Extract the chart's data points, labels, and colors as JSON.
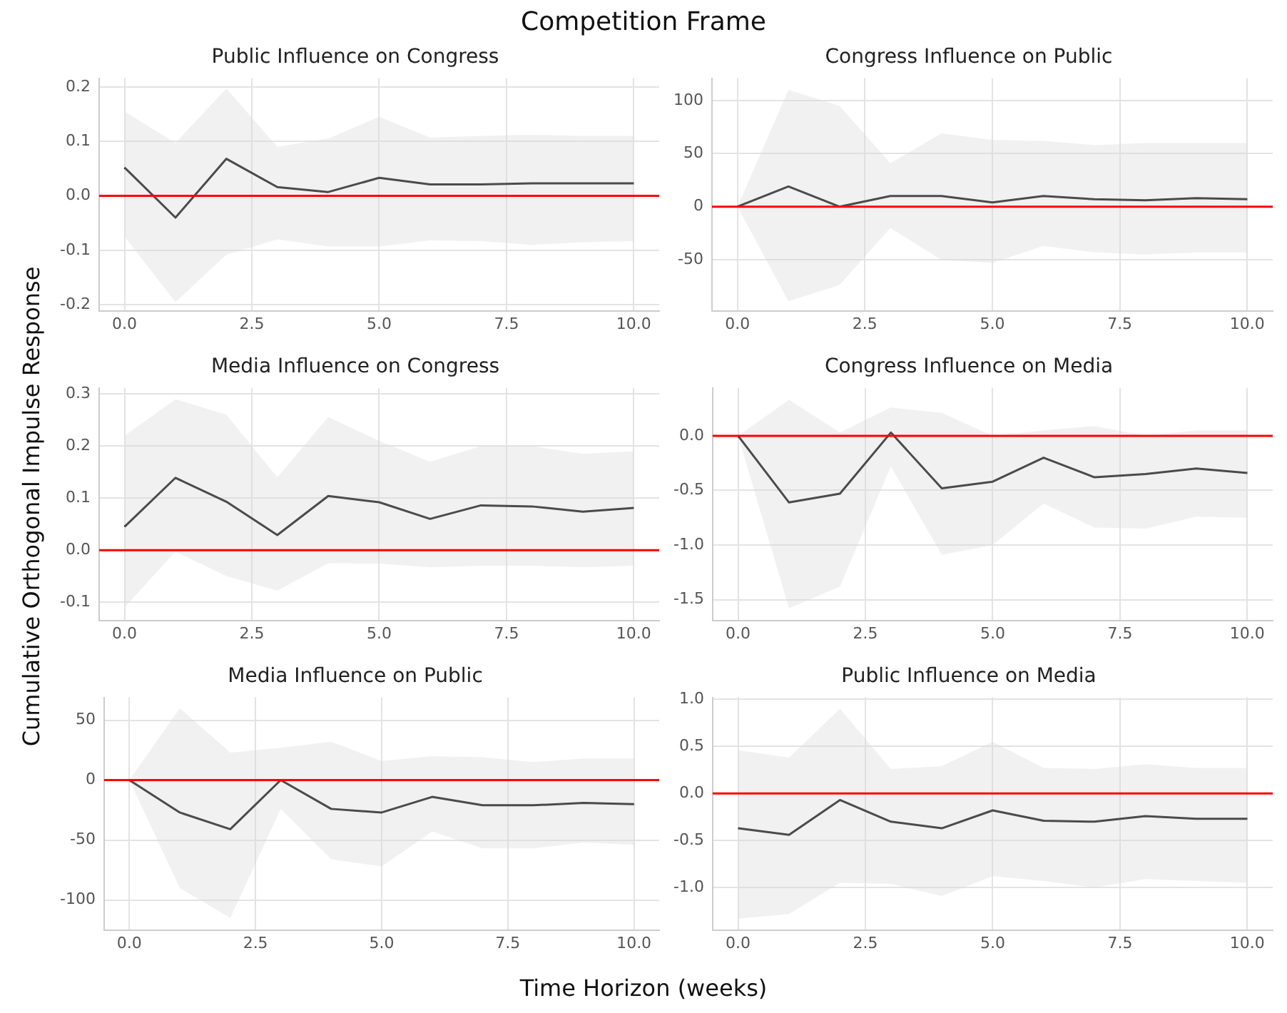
{
  "chart_data": [
    {
      "type": "line",
      "title": "Public Influence on Congress",
      "annotations": [
        "Competition Frame"
      ],
      "x": [
        0,
        1,
        2,
        3,
        4,
        5,
        6,
        7,
        8,
        9,
        10
      ],
      "xlim": [
        -0.5,
        10.5
      ],
      "xticks": [
        {
          "value": 0,
          "label": "0.0"
        },
        {
          "value": 2.5,
          "label": "2.5"
        },
        {
          "value": 5,
          "label": "5.0"
        },
        {
          "value": 7.5,
          "label": "7.5"
        },
        {
          "value": 10,
          "label": "10.0"
        }
      ],
      "ylim": [
        -0.211,
        0.216
      ],
      "yticks": [
        -0.2,
        -0.1,
        {
          "value": 0,
          "label": "0.0"
        },
        0.1,
        0.2
      ],
      "grid": true,
      "legend": false,
      "ref_lines": [
        {
          "axis": "y",
          "value": 0,
          "color": "#ff0000"
        }
      ],
      "series": [
        {
          "color": "#000000",
          "values": [
            0.052,
            -0.04,
            0.068,
            0.016,
            0.007,
            0.033,
            0.021,
            0.021,
            0.023,
            0.023,
            0.023
          ],
          "upper": [
            0.155,
            0.097,
            0.197,
            0.09,
            0.105,
            0.145,
            0.107,
            0.11,
            0.112,
            0.11,
            0.11
          ],
          "lower": [
            -0.075,
            -0.195,
            -0.108,
            -0.08,
            -0.093,
            -0.093,
            -0.082,
            -0.083,
            -0.09,
            -0.085,
            -0.083
          ]
        }
      ]
    },
    {
      "type": "line",
      "title": "Congress Influence on Public",
      "x": [
        0,
        1,
        2,
        3,
        4,
        5,
        6,
        7,
        8,
        9,
        10
      ],
      "xlim": [
        -0.5,
        10.5
      ],
      "xticks": [
        {
          "value": 0,
          "label": "0.0"
        },
        {
          "value": 2.5,
          "label": "2.5"
        },
        {
          "value": 5,
          "label": "5.0"
        },
        {
          "value": 7.5,
          "label": "7.5"
        },
        {
          "value": 10,
          "label": "10.0"
        }
      ],
      "ylim": [
        -98,
        121
      ],
      "yticks": [
        -50,
        0,
        50,
        100
      ],
      "grid": true,
      "legend": false,
      "ref_lines": [
        {
          "axis": "y",
          "value": 0,
          "color": "#ff0000"
        }
      ],
      "series": [
        {
          "color": "#000000",
          "values": [
            0,
            19,
            0,
            10,
            10,
            4,
            10,
            7,
            6,
            8,
            7
          ],
          "upper": [
            0,
            110,
            95,
            41,
            69,
            63,
            62,
            58,
            60,
            60,
            60
          ],
          "lower": [
            0,
            -89,
            -74,
            -20,
            -50,
            -53,
            -37,
            -43,
            -45,
            -43,
            -43
          ]
        }
      ]
    },
    {
      "type": "line",
      "title": "Media Influence on Congress",
      "ylabel": "Cumulative Orthogonal Impulse Response",
      "x": [
        0,
        1,
        2,
        3,
        4,
        5,
        6,
        7,
        8,
        9,
        10
      ],
      "xlim": [
        -0.5,
        10.5
      ],
      "xticks": [
        {
          "value": 0,
          "label": "0.0"
        },
        {
          "value": 2.5,
          "label": "2.5"
        },
        {
          "value": 5,
          "label": "5.0"
        },
        {
          "value": 7.5,
          "label": "7.5"
        },
        {
          "value": 10,
          "label": "10.0"
        }
      ],
      "ylim": [
        -0.135,
        0.312
      ],
      "yticks": [
        -0.1,
        {
          "value": 0,
          "label": "0.0"
        },
        0.1,
        0.2,
        0.3
      ],
      "grid": true,
      "legend": false,
      "ref_lines": [
        {
          "axis": "y",
          "value": 0,
          "color": "#ff0000"
        }
      ],
      "series": [
        {
          "color": "#000000",
          "values": [
            0.045,
            0.139,
            0.093,
            0.029,
            0.104,
            0.092,
            0.06,
            0.086,
            0.084,
            0.074,
            0.081
          ],
          "upper": [
            0.22,
            0.29,
            0.26,
            0.14,
            0.256,
            0.21,
            0.17,
            0.2,
            0.2,
            0.185,
            0.19
          ],
          "lower": [
            -0.11,
            -0.003,
            -0.05,
            -0.078,
            -0.025,
            -0.026,
            -0.033,
            -0.03,
            -0.03,
            -0.033,
            -0.03
          ]
        }
      ]
    },
    {
      "type": "line",
      "title": "Congress Influence on Media",
      "x": [
        0,
        1,
        2,
        3,
        4,
        5,
        6,
        7,
        8,
        9,
        10
      ],
      "xlim": [
        -0.5,
        10.5
      ],
      "xticks": [
        {
          "value": 0,
          "label": "0.0"
        },
        {
          "value": 2.5,
          "label": "2.5"
        },
        {
          "value": 5,
          "label": "5.0"
        },
        {
          "value": 7.5,
          "label": "7.5"
        },
        {
          "value": 10,
          "label": "10.0"
        }
      ],
      "ylim": [
        -1.69,
        0.44
      ],
      "yticks": [
        {
          "value": -1.5,
          "label": "-1.5"
        },
        {
          "value": -1,
          "label": "-1.0"
        },
        {
          "value": -0.5,
          "label": "-0.5"
        },
        {
          "value": 0,
          "label": "0.0"
        }
      ],
      "grid": true,
      "legend": false,
      "ref_lines": [
        {
          "axis": "y",
          "value": 0,
          "color": "#ff0000"
        }
      ],
      "series": [
        {
          "color": "#000000",
          "values": [
            0,
            -0.61,
            -0.53,
            0.03,
            -0.48,
            -0.42,
            -0.2,
            -0.38,
            -0.35,
            -0.3,
            -0.34
          ],
          "upper": [
            0,
            0.33,
            0.03,
            0.26,
            0.21,
            0,
            0.05,
            0.09,
            0,
            0.05,
            0.05
          ],
          "lower": [
            0,
            -1.58,
            -1.38,
            -0.28,
            -1.09,
            -1.0,
            -0.62,
            -0.84,
            -0.85,
            -0.74,
            -0.75
          ]
        }
      ]
    },
    {
      "type": "line",
      "title": "Media Influence on Public",
      "xlabel": "Time Horizon (weeks)",
      "x": [
        0,
        1,
        2,
        3,
        4,
        5,
        6,
        7,
        8,
        9,
        10
      ],
      "xlim": [
        -0.5,
        10.5
      ],
      "xticks": [
        {
          "value": 0,
          "label": "0.0"
        },
        {
          "value": 2.5,
          "label": "2.5"
        },
        {
          "value": 5,
          "label": "5.0"
        },
        {
          "value": 7.5,
          "label": "7.5"
        },
        {
          "value": 10,
          "label": "10.0"
        }
      ],
      "ylim": [
        -125,
        69
      ],
      "yticks": [
        -100,
        -50,
        0,
        50
      ],
      "grid": true,
      "legend": false,
      "ref_lines": [
        {
          "axis": "y",
          "value": 0,
          "color": "#ff0000"
        }
      ],
      "series": [
        {
          "color": "#000000",
          "values": [
            0,
            -27,
            -41,
            0,
            -24,
            -27,
            -14,
            -21,
            -21,
            -19,
            -20
          ],
          "upper": [
            0,
            60,
            23,
            27,
            32,
            16,
            20,
            19,
            15,
            18,
            18
          ],
          "lower": [
            0,
            -90,
            -115,
            -24,
            -66,
            -72,
            -43,
            -57,
            -57,
            -52,
            -54
          ]
        }
      ]
    },
    {
      "type": "line",
      "title": "Public Influence on Media",
      "x": [
        0,
        1,
        2,
        3,
        4,
        5,
        6,
        7,
        8,
        9,
        10
      ],
      "xlim": [
        -0.5,
        10.5
      ],
      "xticks": [
        {
          "value": 0,
          "label": "0.0"
        },
        {
          "value": 2.5,
          "label": "2.5"
        },
        {
          "value": 5,
          "label": "5.0"
        },
        {
          "value": 7.5,
          "label": "7.5"
        },
        {
          "value": 10,
          "label": "10.0"
        }
      ],
      "ylim": [
        -1.45,
        1.02
      ],
      "yticks": [
        {
          "value": -1,
          "label": "-1.0"
        },
        {
          "value": -0.5,
          "label": "-0.5"
        },
        {
          "value": 0,
          "label": "0.0"
        },
        {
          "value": 0.5,
          "label": "0.5"
        },
        {
          "value": 1,
          "label": "1.0"
        }
      ],
      "grid": true,
      "legend": false,
      "ref_lines": [
        {
          "axis": "y",
          "value": 0,
          "color": "#ff0000"
        }
      ],
      "series": [
        {
          "color": "#000000",
          "values": [
            -0.37,
            -0.44,
            -0.07,
            -0.3,
            -0.37,
            -0.18,
            -0.29,
            -0.3,
            -0.24,
            -0.27,
            -0.27
          ],
          "upper": [
            0.46,
            0.38,
            0.9,
            0.26,
            0.29,
            0.55,
            0.27,
            0.26,
            0.31,
            0.27,
            0.27
          ],
          "lower": [
            -1.33,
            -1.28,
            -0.95,
            -0.96,
            -1.09,
            -0.88,
            -0.93,
            -1.0,
            -0.91,
            -0.93,
            -0.95
          ]
        }
      ]
    }
  ]
}
